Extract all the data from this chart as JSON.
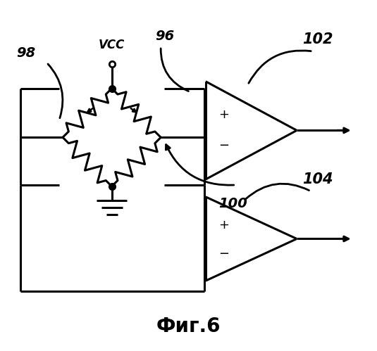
{
  "title": "Фиг.6",
  "labels": {
    "vcc": "VCC",
    "n96": "96",
    "n98": "98",
    "n100": "100",
    "n102": "102",
    "n104": "104"
  },
  "bg_color": "#ffffff",
  "line_color": "#000000",
  "lw": 2.2,
  "figsize": [
    5.35,
    4.99
  ],
  "dpi": 100
}
